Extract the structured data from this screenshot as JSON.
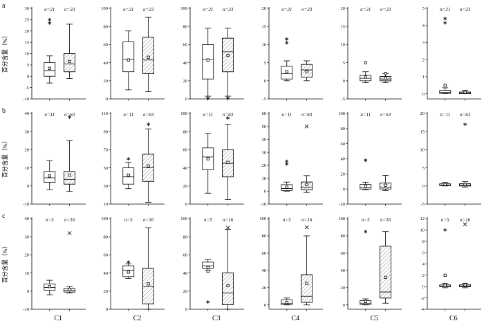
{
  "figure": {
    "ylabel": "百分含量（%）",
    "row_labels": [
      "a",
      "b",
      "c"
    ],
    "col_labels": [
      "C1",
      "C2",
      "C3",
      "C4",
      "C5",
      "C6"
    ],
    "background": "#ffffff",
    "axis_color": "#000000"
  },
  "chart_data": {
    "type": "boxplot",
    "layout": "3 rows x 6 columns, two boxes per subplot (left box open, right box hatched), mean shown as open square, outliers as asterisk/x/square",
    "columns": [
      "C1",
      "C2",
      "C3",
      "C4",
      "C5",
      "C6"
    ],
    "rows": [
      {
        "label": "a",
        "n_labels": [
          "n=21",
          "n=23"
        ],
        "subplots": [
          {
            "col": "C1",
            "ylim": [
              -10,
              30
            ],
            "yticks": [
              -10,
              -5,
              0,
              5,
              10,
              15,
              20,
              25,
              30
            ],
            "boxes": [
              {
                "low": -3,
                "q1": 0,
                "med": 2.5,
                "q3": 6,
                "high": 9,
                "mean": 3.5,
                "outliers": [
                  {
                    "v": 25,
                    "s": "star"
                  },
                  {
                    "v": 23.5,
                    "s": "star"
                  }
                ]
              },
              {
                "low": -1,
                "q1": 2,
                "med": 5.5,
                "q3": 10,
                "high": 23,
                "mean": 6.5,
                "outliers": []
              }
            ]
          },
          {
            "col": "C2",
            "ylim": [
              0,
              100
            ],
            "yticks": [
              0,
              20,
              40,
              60,
              80,
              100
            ],
            "boxes": [
              {
                "low": 10,
                "q1": 30,
                "med": 44,
                "q3": 63,
                "high": 75,
                "mean": 43,
                "outliers": []
              },
              {
                "low": 8,
                "q1": 28,
                "med": 43,
                "q3": 68,
                "high": 90,
                "mean": 46,
                "outliers": []
              }
            ]
          },
          {
            "col": "C3",
            "ylim": [
              0,
              100
            ],
            "yticks": [
              0,
              20,
              40,
              60,
              80,
              100
            ],
            "boxes": [
              {
                "low": 3,
                "q1": 22,
                "med": 44,
                "q3": 60,
                "high": 78,
                "mean": 43,
                "outliers": [
                  {
                    "v": 1,
                    "s": "star"
                  }
                ]
              },
              {
                "low": 3,
                "q1": 30,
                "med": 52,
                "q3": 67,
                "high": 78,
                "mean": 48,
                "outliers": [
                  {
                    "v": 1,
                    "s": "star"
                  }
                ]
              }
            ]
          },
          {
            "col": "C4",
            "ylim": [
              -5,
              20
            ],
            "yticks": [
              -5,
              0,
              5,
              10,
              15,
              20
            ],
            "boxes": [
              {
                "low": 0,
                "q1": 0.5,
                "med": 2,
                "q3": 4,
                "high": 5.5,
                "mean": 2.5,
                "outliers": [
                  {
                    "v": 11.5,
                    "s": "star"
                  },
                  {
                    "v": 10.5,
                    "s": "star"
                  }
                ]
              },
              {
                "low": 0,
                "q1": 1,
                "med": 3,
                "q3": 4.5,
                "high": 5.5,
                "mean": 2.5,
                "outliers": []
              }
            ]
          },
          {
            "col": "C5",
            "ylim": [
              -5,
              20
            ],
            "yticks": [
              -5,
              0,
              5,
              10,
              15,
              20
            ],
            "boxes": [
              {
                "low": -0.5,
                "q1": 0,
                "med": 0.7,
                "q3": 1.5,
                "high": 2.5,
                "mean": 1,
                "outliers": [
                  {
                    "v": 5,
                    "s": "sq"
                  }
                ]
              },
              {
                "low": -0.5,
                "q1": 0,
                "med": 0.5,
                "q3": 1.2,
                "high": 2,
                "mean": 0.8,
                "outliers": [
                  {
                    "v": 2,
                    "s": "sq"
                  }
                ]
              }
            ]
          },
          {
            "col": "C6",
            "ylim": [
              -0.3,
              5
            ],
            "yticks": [
              0,
              1,
              2,
              3,
              4,
              5
            ],
            "boxes": [
              {
                "low": 0,
                "q1": 0.02,
                "med": 0.08,
                "q3": 0.2,
                "high": 0.35,
                "mean": 0.5,
                "outliers": [
                  {
                    "v": 4.4,
                    "s": "star"
                  },
                  {
                    "v": 4.15,
                    "s": "star"
                  }
                ]
              },
              {
                "low": 0,
                "q1": 0,
                "med": 0.03,
                "q3": 0.1,
                "high": 0.2,
                "mean": 0.1,
                "outliers": []
              }
            ]
          }
        ]
      },
      {
        "label": "b",
        "n_labels": [
          "n=11",
          "n=63"
        ],
        "subplots": [
          {
            "col": "C1",
            "ylim": [
              -10,
              40
            ],
            "yticks": [
              -10,
              0,
              10,
              20,
              30,
              40
            ],
            "boxes": [
              {
                "low": -2,
                "q1": 2,
                "med": 4.5,
                "q3": 8,
                "high": 14,
                "mean": 5.5,
                "outliers": []
              },
              {
                "low": -3,
                "q1": 1,
                "med": 3.5,
                "q3": 8,
                "high": 25,
                "mean": 6,
                "outliers": [
                  {
                    "v": 38,
                    "s": "star"
                  }
                ]
              }
            ]
          },
          {
            "col": "C2",
            "ylim": [
              10,
              110
            ],
            "yticks": [
              10,
              30,
              50,
              70,
              90,
              110
            ],
            "boxes": [
              {
                "low": 27,
                "q1": 32,
                "med": 40,
                "q3": 50,
                "high": 56,
                "mean": 42,
                "outliers": [
                  {
                    "v": 60,
                    "s": "star"
                  }
                ]
              },
              {
                "low": 12,
                "q1": 35,
                "med": 50,
                "q3": 65,
                "high": 93,
                "mean": 52,
                "outliers": [
                  {
                    "v": 98,
                    "s": "star"
                  }
                ]
              }
            ]
          },
          {
            "col": "C3",
            "ylim": [
              0,
              100
            ],
            "yticks": [
              0,
              20,
              40,
              60,
              80,
              100
            ],
            "boxes": [
              {
                "low": 12,
                "q1": 38,
                "med": 52,
                "q3": 62,
                "high": 78,
                "mean": 50,
                "outliers": []
              },
              {
                "low": 5,
                "q1": 30,
                "med": 45,
                "q3": 60,
                "high": 88,
                "mean": 46,
                "outliers": [
                  {
                    "v": 95,
                    "s": "star"
                  }
                ]
              }
            ]
          },
          {
            "col": "C4",
            "ylim": [
              -10,
              60
            ],
            "yticks": [
              -10,
              0,
              10,
              20,
              30,
              40,
              50,
              60
            ],
            "boxes": [
              {
                "low": 0,
                "q1": 0.5,
                "med": 2,
                "q3": 5,
                "high": 7,
                "mean": 3,
                "outliers": [
                  {
                    "v": 23,
                    "s": "star"
                  },
                  {
                    "v": 21,
                    "s": "star"
                  }
                ]
              },
              {
                "low": -1,
                "q1": 1,
                "med": 3,
                "q3": 7,
                "high": 12,
                "mean": 5,
                "outliers": [
                  {
                    "v": 50,
                    "s": "x"
                  }
                ]
              }
            ]
          },
          {
            "col": "C5",
            "ylim": [
              -20,
              100
            ],
            "yticks": [
              -20,
              0,
              20,
              40,
              60,
              80,
              100
            ],
            "boxes": [
              {
                "low": -1,
                "q1": 0,
                "med": 2,
                "q3": 6,
                "high": 9,
                "mean": 4,
                "outliers": [
                  {
                    "v": 38,
                    "s": "star"
                  }
                ]
              },
              {
                "low": -2,
                "q1": 0,
                "med": 2,
                "q3": 8,
                "high": 18,
                "mean": 5,
                "outliers": []
              }
            ]
          },
          {
            "col": "C6",
            "ylim": [
              -5,
              20
            ],
            "yticks": [
              -5,
              0,
              5,
              10,
              15,
              20
            ],
            "boxes": [
              {
                "low": 0,
                "q1": 0.1,
                "med": 0.3,
                "q3": 0.6,
                "high": 1,
                "mean": 0.4,
                "outliers": []
              },
              {
                "low": -0.3,
                "q1": 0,
                "med": 0.2,
                "q3": 0.6,
                "high": 1.2,
                "mean": 0.4,
                "outliers": [
                  {
                    "v": 17,
                    "s": "star"
                  }
                ]
              }
            ]
          }
        ]
      },
      {
        "label": "c",
        "n_labels": [
          "n=5",
          "n=16"
        ],
        "subplots": [
          {
            "col": "C1",
            "ylim": [
              -10,
              40
            ],
            "yticks": [
              -10,
              0,
              10,
              20,
              30,
              40
            ],
            "boxes": [
              {
                "low": -2,
                "q1": 0.5,
                "med": 2,
                "q3": 4,
                "high": 6,
                "mean": 2.5,
                "outliers": []
              },
              {
                "low": -1,
                "q1": -0.5,
                "med": 0.5,
                "q3": 1.5,
                "high": 2.5,
                "mean": 1,
                "outliers": [
                  {
                    "v": 32,
                    "s": "x"
                  }
                ]
              }
            ]
          },
          {
            "col": "C2",
            "ylim": [
              0,
              100
            ],
            "yticks": [
              0,
              20,
              40,
              60,
              80,
              100
            ],
            "boxes": [
              {
                "low": 34,
                "q1": 36,
                "med": 43,
                "q3": 48,
                "high": 50,
                "mean": 41,
                "outliers": [
                  {
                    "v": 52,
                    "s": "star"
                  }
                ]
              },
              {
                "low": 0,
                "q1": 6,
                "med": 25,
                "q3": 45,
                "high": 90,
                "mean": 28,
                "outliers": []
              }
            ]
          },
          {
            "col": "C3",
            "ylim": [
              0,
              100
            ],
            "yticks": [
              0,
              20,
              40,
              60,
              80,
              100
            ],
            "boxes": [
              {
                "low": 43,
                "q1": 45,
                "med": 48,
                "q3": 52,
                "high": 55,
                "mean": 46,
                "outliers": [
                  {
                    "v": 42,
                    "s": "sq"
                  },
                  {
                    "v": 8,
                    "s": "star"
                  }
                ]
              },
              {
                "low": 0,
                "q1": 5,
                "med": 18,
                "q3": 40,
                "high": 88,
                "mean": 26,
                "outliers": [
                  {
                    "v": 90,
                    "s": "x"
                  }
                ]
              }
            ]
          },
          {
            "col": "C4",
            "ylim": [
              -5,
              100
            ],
            "yticks": [
              0,
              20,
              40,
              60,
              80,
              100
            ],
            "boxes": [
              {
                "low": 0,
                "q1": 0.5,
                "med": 2,
                "q3": 6,
                "high": 8,
                "mean": 3,
                "outliers": []
              },
              {
                "low": 0,
                "q1": 3,
                "med": 10,
                "q3": 35,
                "high": 80,
                "mean": 25,
                "outliers": [
                  {
                    "v": 90,
                    "s": "x"
                  }
                ]
              }
            ]
          },
          {
            "col": "C5",
            "ylim": [
              -5,
              100
            ],
            "yticks": [
              0,
              20,
              40,
              60,
              80,
              100
            ],
            "boxes": [
              {
                "low": 0,
                "q1": 0.5,
                "med": 2,
                "q3": 5,
                "high": 7,
                "mean": 4,
                "outliers": [
                  {
                    "v": 85,
                    "s": "star"
                  }
                ]
              },
              {
                "low": 2,
                "q1": 8,
                "med": 15,
                "q3": 68,
                "high": 85,
                "mean": 32,
                "outliers": []
              }
            ]
          },
          {
            "col": "C6",
            "ylim": [
              -4,
              12
            ],
            "yticks": [
              -4,
              -2,
              0,
              2,
              4,
              6,
              8,
              10,
              12
            ],
            "boxes": [
              {
                "low": -0.2,
                "q1": 0,
                "med": 0.1,
                "q3": 0.3,
                "high": 0.6,
                "mean": 0.2,
                "outliers": [
                  {
                    "v": 2,
                    "s": "sq"
                  },
                  {
                    "v": 10,
                    "s": "star"
                  }
                ]
              },
              {
                "low": -0.2,
                "q1": 0,
                "med": 0.1,
                "q3": 0.3,
                "high": 0.6,
                "mean": 0.3,
                "outliers": [
                  {
                    "v": 11,
                    "s": "x"
                  }
                ]
              }
            ]
          }
        ]
      }
    ]
  }
}
